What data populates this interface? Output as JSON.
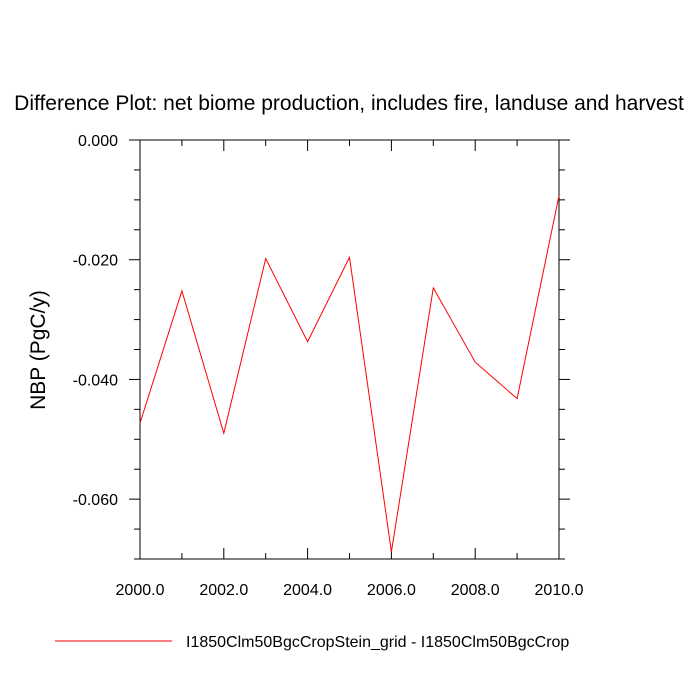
{
  "chart_data": {
    "type": "line",
    "title": "Difference Plot: net biome production, includes fire, landuse and harvest",
    "xlabel": "",
    "ylabel": "NBP  (PgC/y)",
    "xlim": [
      2000.0,
      2010.0
    ],
    "ylim": [
      -0.07,
      0.0
    ],
    "xticks": [
      "2000.0",
      "2002.0",
      "2004.0",
      "2006.0",
      "2008.0",
      "2010.0"
    ],
    "yticks": [
      "0.000",
      "-0.020",
      "-0.040",
      "-0.060"
    ],
    "grid": false,
    "legend_position": "bottom",
    "series": [
      {
        "name": "I1850Clm50BgcCropStein_grid - I1850Clm50BgcCrop",
        "color": "#ff0000",
        "x": [
          2000,
          2001,
          2002,
          2003,
          2004,
          2005,
          2006,
          2007,
          2008,
          2009,
          2010
        ],
        "y": [
          -0.0473,
          -0.0252,
          -0.049,
          -0.0198,
          -0.0337,
          -0.0196,
          -0.0688,
          -0.0247,
          -0.0371,
          -0.0432,
          -0.0093
        ]
      }
    ]
  }
}
